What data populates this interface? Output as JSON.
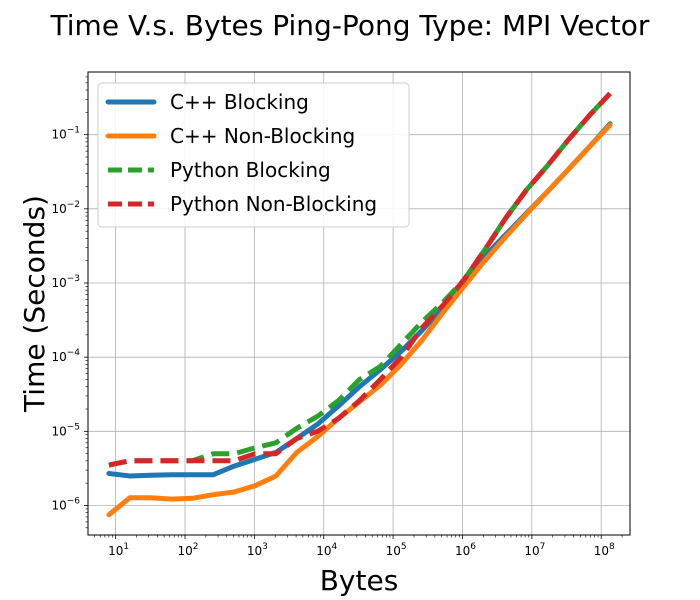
{
  "chart_data": {
    "type": "line",
    "title": "Time V.s. Bytes Ping-Pong Type: MPI Vector",
    "xlabel": "Bytes",
    "ylabel": "Time (Seconds)",
    "xscale": "log",
    "yscale": "log",
    "xlim": [
      4,
      260000000
    ],
    "ylim": [
      4e-07,
      0.7
    ],
    "x_ticks": [
      {
        "value": 10,
        "base": "10",
        "exp": "1"
      },
      {
        "value": 100,
        "base": "10",
        "exp": "2"
      },
      {
        "value": 1000,
        "base": "10",
        "exp": "3"
      },
      {
        "value": 10000,
        "base": "10",
        "exp": "4"
      },
      {
        "value": 100000,
        "base": "10",
        "exp": "5"
      },
      {
        "value": 1000000,
        "base": "10",
        "exp": "6"
      },
      {
        "value": 10000000,
        "base": "10",
        "exp": "7"
      },
      {
        "value": 100000000,
        "base": "10",
        "exp": "8"
      }
    ],
    "y_ticks": [
      {
        "value": 1e-06,
        "base": "10",
        "exp": "−6"
      },
      {
        "value": 1e-05,
        "base": "10",
        "exp": "−5"
      },
      {
        "value": 0.0001,
        "base": "10",
        "exp": "−4"
      },
      {
        "value": 0.001,
        "base": "10",
        "exp": "−3"
      },
      {
        "value": 0.01,
        "base": "10",
        "exp": "−2"
      },
      {
        "value": 0.1,
        "base": "10",
        "exp": "−1"
      }
    ],
    "grid": true,
    "legend_position": "upper-left",
    "x": [
      8,
      16,
      32,
      64,
      128,
      256,
      512,
      1024,
      2048,
      4096,
      8192,
      16384,
      32768,
      65536,
      131072,
      262144,
      524288,
      1048576,
      2097152,
      4194304,
      8388608,
      16777216,
      33554432,
      67108864,
      134217728
    ],
    "series": [
      {
        "name": "C++ Blocking",
        "color": "#1f77b4",
        "style": "solid",
        "values": [
          2.7e-06,
          2.5e-06,
          2.55e-06,
          2.6e-06,
          2.6e-06,
          2.6e-06,
          3.4e-06,
          4.2e-06,
          5.2e-06,
          8e-06,
          1.25e-05,
          2.2e-05,
          4e-05,
          6.8e-05,
          0.00012,
          0.00023,
          0.00046,
          0.001,
          0.0023,
          0.0045,
          0.0087,
          0.017,
          0.034,
          0.068,
          0.14
        ]
      },
      {
        "name": "C++ Non-Blocking",
        "color": "#ff7f0e",
        "style": "solid",
        "values": [
          7.5e-07,
          1.27e-06,
          1.27e-06,
          1.22e-06,
          1.25e-06,
          1.4e-06,
          1.52e-06,
          1.85e-06,
          2.5e-06,
          5.2e-06,
          8.5e-06,
          1.5e-05,
          2.5e-05,
          4.2e-05,
          8e-05,
          0.00017,
          0.0004,
          0.0009,
          0.002,
          0.0042,
          0.0085,
          0.017,
          0.034,
          0.068,
          0.135
        ]
      },
      {
        "name": "Python Blocking",
        "color": "#2ca02c",
        "style": "dashed",
        "values": [
          3.5e-06,
          4e-06,
          4e-06,
          4e-06,
          4e-06,
          5e-06,
          5e-06,
          6e-06,
          7e-06,
          1.1e-05,
          1.6e-05,
          2.6e-05,
          5e-05,
          7.5e-05,
          0.00015,
          0.0003,
          0.00055,
          0.0011,
          0.0028,
          0.0075,
          0.018,
          0.038,
          0.085,
          0.18,
          0.36
        ]
      },
      {
        "name": "Python Non-Blocking",
        "color": "#d62728",
        "style": "dashed",
        "values": [
          3.5e-06,
          4e-06,
          4e-06,
          4e-06,
          4e-06,
          4e-06,
          4e-06,
          5e-06,
          5e-06,
          8e-06,
          1e-05,
          1.5e-05,
          2.6e-05,
          5e-05,
          0.0001,
          0.00025,
          0.0005,
          0.0011,
          0.0028,
          0.0075,
          0.018,
          0.038,
          0.085,
          0.18,
          0.36
        ]
      }
    ]
  }
}
